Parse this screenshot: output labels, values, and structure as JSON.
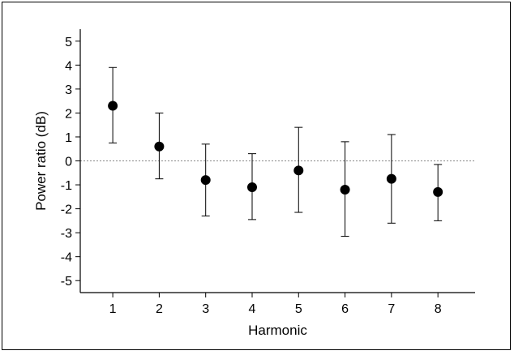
{
  "chart_data": {
    "type": "scatter",
    "title": "",
    "xlabel": "Harmonic",
    "ylabel": "Power ratio (dB)",
    "xlim": [
      0.3,
      8.8
    ],
    "ylim": [
      -5.5,
      5.5
    ],
    "x_ticks": [
      1,
      2,
      3,
      4,
      5,
      6,
      7,
      8
    ],
    "y_ticks": [
      5,
      4,
      3,
      2,
      1,
      0,
      -1,
      -2,
      -3,
      -4,
      -5
    ],
    "reference_line": 0,
    "grid": false,
    "legend": "none",
    "series": [
      {
        "x": [
          1,
          2,
          3,
          4,
          5,
          6,
          7,
          8
        ],
        "y": [
          2.3,
          0.6,
          -0.8,
          -1.1,
          -0.4,
          -1.2,
          -0.75,
          -1.3
        ],
        "error_low": [
          0.75,
          -0.75,
          -2.3,
          -2.45,
          -2.15,
          -3.15,
          -2.6,
          -2.5
        ],
        "error_high": [
          3.9,
          2.0,
          0.7,
          0.3,
          1.4,
          0.8,
          1.1,
          -0.15
        ],
        "color": "#000000"
      }
    ]
  }
}
